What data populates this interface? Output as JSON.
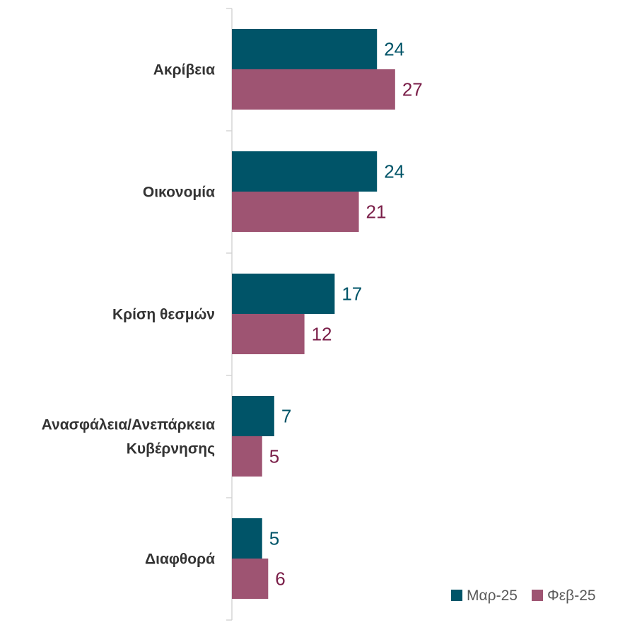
{
  "chart_data": {
    "type": "bar",
    "orientation": "horizontal",
    "categories": [
      [
        "Ακρίβεια"
      ],
      [
        "Οικονομία"
      ],
      [
        "Κρίση θεσμών"
      ],
      [
        "Ανασφάλεια/Ανεπάρκεια",
        "Κυβέρνησης"
      ],
      [
        "Διαφθορά"
      ]
    ],
    "series": [
      {
        "name": "Μαρ-25",
        "values": [
          24,
          24,
          17,
          7,
          5
        ],
        "color": "#005468",
        "label_color": "#005468"
      },
      {
        "name": "Φεβ-25",
        "values": [
          27,
          21,
          12,
          5,
          6
        ],
        "color": "#9E5472",
        "label_color": "#7A1E48"
      }
    ],
    "data_labels": true,
    "gridlines": false,
    "legend_position": "bottom-right",
    "xlim": [
      0,
      100
    ],
    "axis_color": "#D0D0D0",
    "category_label_color": "#333333"
  }
}
